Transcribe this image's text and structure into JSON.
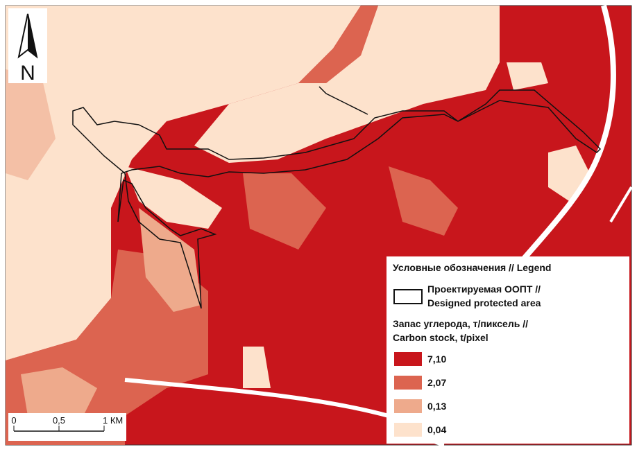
{
  "north_arrow": {
    "label": "N"
  },
  "scale_bar": {
    "ticks": [
      "0",
      "0,5",
      "1 КМ"
    ]
  },
  "legend": {
    "title": "Условные обозначения // Legend",
    "boundary": {
      "label_lines": [
        "Проектируемая ООПТ //",
        "Designed protected area"
      ]
    },
    "carbon": {
      "title_lines": [
        "Запас углерода, т/пиксель //",
        "Carbon stock, t/pixel"
      ],
      "items": [
        {
          "label": "7,10",
          "color": "#c8161c"
        },
        {
          "label": "2,07",
          "color": "#dc6450"
        },
        {
          "label": "0,13",
          "color": "#eeaa8c"
        },
        {
          "label": "0,04",
          "color": "#fde2cc"
        }
      ]
    }
  }
}
